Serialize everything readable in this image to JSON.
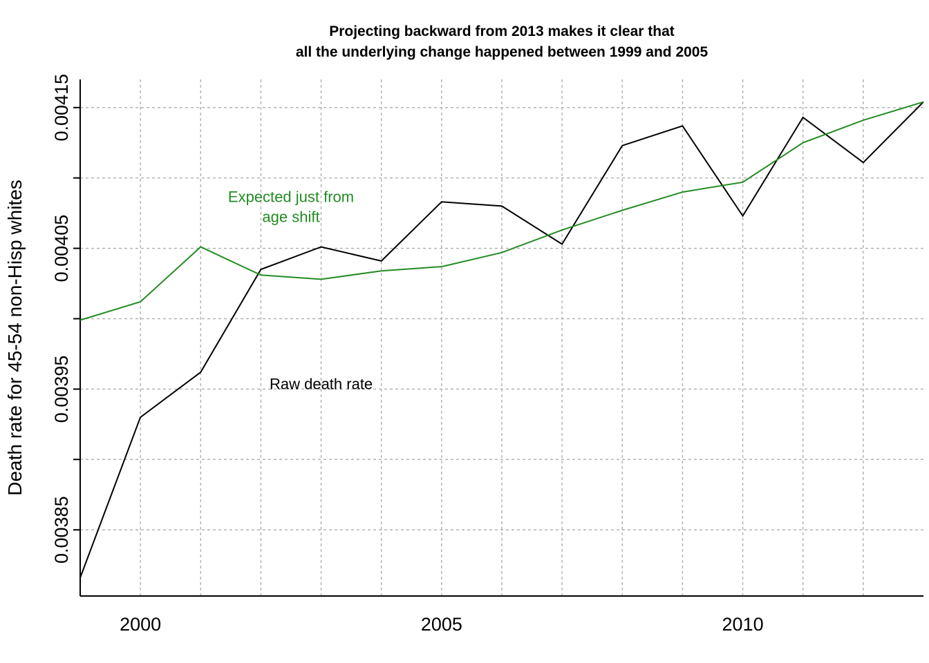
{
  "chart_data": {
    "type": "line",
    "title": "Projecting backward from 2013 makes it clear that\nall the underlying change happened between 1999 and 2005",
    "title_lines": [
      "Projecting backward from 2013 makes it clear that",
      "all the underlying change happened between 1999 and 2005"
    ],
    "xlabel": "",
    "ylabel": "Death rate for 45-54 non-Hisp whites",
    "xlim": [
      1999,
      2013
    ],
    "ylim": [
      0.003803,
      0.00417
    ],
    "x_ticks": [
      2000,
      2005,
      2010
    ],
    "x_ticks_minor": [
      2000,
      2001,
      2002,
      2003,
      2004,
      2005,
      2006,
      2007,
      2008,
      2009,
      2010,
      2011,
      2012
    ],
    "y_ticks": [
      0.00385,
      0.0039,
      0.00395,
      0.004,
      0.00405,
      0.0041,
      0.00415
    ],
    "y_tick_labels": [
      "0.00385",
      "",
      "0.00395",
      "",
      "0.00405",
      "",
      "0.00415"
    ],
    "grid": true,
    "x": [
      1999,
      2000,
      2001,
      2002,
      2003,
      2004,
      2005,
      2006,
      2007,
      2008,
      2009,
      2010,
      2011,
      2012,
      2013
    ],
    "series": [
      {
        "name": "Raw death rate",
        "color": "#000000",
        "values": [
          0.003816,
          0.00393,
          0.003962,
          0.004035,
          0.004051,
          0.004041,
          0.004083,
          0.00408,
          0.004053,
          0.004123,
          0.004137,
          0.004073,
          0.004143,
          0.004111,
          0.004154
        ]
      },
      {
        "name": "Expected just from\nage shift",
        "color": "#228b22",
        "values": [
          0.003999,
          0.004012,
          0.004051,
          0.004031,
          0.004028,
          0.004034,
          0.004037,
          0.004047,
          0.004063,
          0.004077,
          0.00409,
          0.004097,
          0.004125,
          0.004141,
          0.004154
        ]
      }
    ],
    "annotations": [
      {
        "series": 0,
        "lines": [
          "Raw death rate"
        ],
        "x": 2003,
        "y": 0.00395,
        "color": "#000000"
      },
      {
        "series": 1,
        "lines": [
          "Expected just from",
          "age shift"
        ],
        "x": 2002.5,
        "y": 0.004083,
        "color": "#228b22"
      }
    ]
  }
}
